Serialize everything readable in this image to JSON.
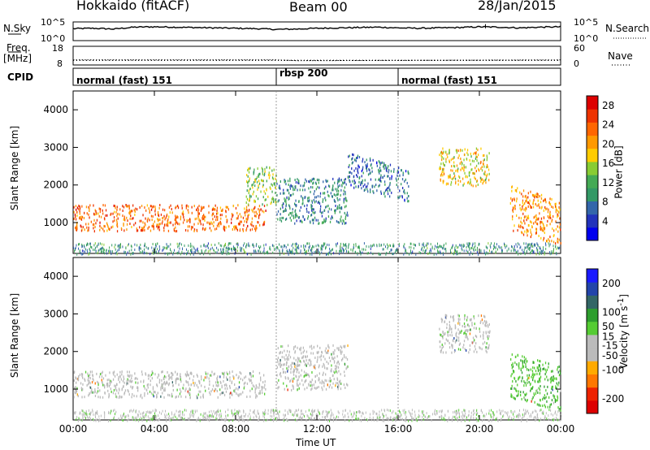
{
  "header": {
    "site": "Hokkaido (fitACF)",
    "beam": "Beam 00",
    "date": "28/Jan/2015"
  },
  "noise_panel": {
    "left_label": "N.Sky",
    "right_label": "N.Search",
    "left_ticks": [
      "10^5",
      "10^0"
    ],
    "right_ticks": [
      "10^5",
      "10^0"
    ]
  },
  "freq_panel": {
    "left_label_top": "Freq.",
    "left_label_bottom": "[MHz]",
    "right_label": "Nave",
    "left_ticks": [
      "18",
      "8"
    ],
    "right_ticks": [
      "60",
      "0"
    ]
  },
  "cpid_panel": {
    "label": "CPID",
    "segments": [
      {
        "label": "normal (fast) 151",
        "start_h": 0,
        "end_h": 10
      },
      {
        "label": "rbsp 200",
        "start_h": 10,
        "end_h": 16
      },
      {
        "label": "normal (fast) 151",
        "start_h": 16,
        "end_h": 24
      }
    ]
  },
  "axes": {
    "x_label": "Time UT",
    "x_ticks": [
      "00:00",
      "04:00",
      "08:00",
      "12:00",
      "16:00",
      "20:00",
      "00:00"
    ],
    "y_label": "Slant Range [km]",
    "y_ticks": [
      "1000",
      "2000",
      "3000",
      "4000"
    ]
  },
  "colors": {
    "power_scale": [
      "#0000ee",
      "#2233bb",
      "#3366aa",
      "#339966",
      "#44aa55",
      "#88cc33",
      "#ffcc00",
      "#ff9900",
      "#ff6600",
      "#ee3300",
      "#dd0000"
    ],
    "velocity_scale": [
      "#1a1aff",
      "#2244aa",
      "#336666",
      "#2e9e2e",
      "#55cc33",
      "#bbbbbb",
      "#bbbbbb",
      "#ffaa00",
      "#ff7700",
      "#ee2200",
      "#dd0000"
    ]
  },
  "chart_data": [
    {
      "type": "line",
      "title": "N.Sky / N.Search noise",
      "x_range_h": [
        0,
        24
      ],
      "y_scale": "log",
      "ylim": [
        "10^0",
        "10^5"
      ],
      "series": [
        {
          "name": "N.Sky",
          "x": [
            0,
            1,
            2,
            3,
            4,
            5,
            6,
            7,
            8,
            9,
            10,
            11,
            12,
            13,
            14,
            15,
            16,
            17,
            18,
            19,
            20,
            21,
            22,
            23,
            24
          ],
          "values": [
            3.2,
            3.3,
            3.1,
            3.6,
            3.7,
            3.6,
            3.5,
            3.4,
            3.3,
            3.2,
            3.0,
            3.1,
            3.3,
            3.4,
            3.5,
            3.6,
            3.4,
            3.3,
            3.4,
            3.5,
            3.7,
            3.6,
            3.4,
            3.6,
            3.7
          ]
        }
      ]
    },
    {
      "type": "line",
      "title": "Freq. / Nave",
      "x_range_h": [
        0,
        24
      ],
      "ylim_freq_mhz": [
        8,
        18
      ],
      "ylim_nave": [
        0,
        60
      ],
      "series": [
        {
          "name": "Freq.",
          "x": [
            0,
            10,
            11,
            24
          ],
          "values": [
            10.7,
            10.7,
            10.3,
            10.7
          ]
        },
        {
          "name": "Nave",
          "x": [
            0,
            24
          ],
          "values": [
            15,
            15
          ]
        }
      ]
    },
    {
      "type": "heatmap",
      "title": "Power",
      "colorbar_label": "Power [dB]",
      "colorbar_ticks": [
        4,
        8,
        12,
        16,
        20,
        24,
        28
      ],
      "colorbar_range": [
        0,
        30
      ],
      "x_range_h": [
        0,
        24
      ],
      "ylim_km": [
        180,
        4500
      ],
      "echo_regions": [
        {
          "t": [
            0.0,
            9.5
          ],
          "r_km": [
            800,
            1500
          ],
          "value": 24
        },
        {
          "t": [
            8.5,
            10.0
          ],
          "r_km": [
            1500,
            2500
          ],
          "value": 14
        },
        {
          "t": [
            10.0,
            13.5
          ],
          "r_km": [
            1000,
            2200
          ],
          "value": 8
        },
        {
          "t": [
            13.5,
            16.5
          ],
          "r_km": [
            2000,
            2900
          ],
          "value": 6
        },
        {
          "t": [
            18.0,
            20.5
          ],
          "r_km": [
            2000,
            3000
          ],
          "value": 18
        },
        {
          "t": [
            21.5,
            24.0
          ],
          "r_km": [
            800,
            2000
          ],
          "value": 22
        }
      ]
    },
    {
      "type": "heatmap",
      "title": "Velocity",
      "colorbar_label": "Velocity [m s^-1]",
      "colorbar_ticks": [
        -200,
        -100,
        -50,
        -15,
        15,
        50,
        100,
        200
      ],
      "colorbar_range": [
        -250,
        250
      ],
      "x_range_h": [
        0,
        24
      ],
      "ylim_km": [
        180,
        4500
      ],
      "echo_regions": [
        {
          "t": [
            0.0,
            9.5
          ],
          "r_km": [
            800,
            1500
          ],
          "value": 0
        },
        {
          "t": [
            10.0,
            13.5
          ],
          "r_km": [
            1000,
            2200
          ],
          "value": 0
        },
        {
          "t": [
            18.0,
            20.5
          ],
          "r_km": [
            2000,
            3000
          ],
          "value": 0
        },
        {
          "t": [
            21.5,
            24.0
          ],
          "r_km": [
            800,
            2000
          ],
          "value": 60
        }
      ]
    }
  ]
}
